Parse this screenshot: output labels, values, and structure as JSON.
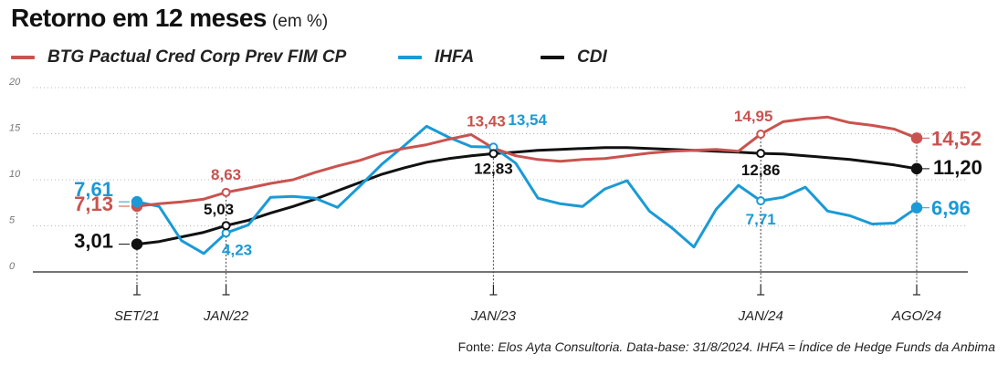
{
  "header": {
    "title": "Retorno em 12 meses",
    "unit": "(em %)"
  },
  "source": {
    "prefix": "Fonte:",
    "text": "Elos Ayta Consultoria. Data-base: 31/8/2024. IHFA = Índice de Hedge Funds da Anbima"
  },
  "chart_data": {
    "type": "line",
    "title": "Retorno em 12 meses",
    "ylabel": "",
    "xlabel": "",
    "ylim": [
      0,
      20
    ],
    "yticks": [
      "0",
      "5",
      "10",
      "15",
      "20"
    ],
    "grid": true,
    "legend_position": "top",
    "x_tick_labels": [
      {
        "index": 0,
        "label": "SET/21"
      },
      {
        "index": 4,
        "label": "JAN/22"
      },
      {
        "index": 16,
        "label": "JAN/23"
      },
      {
        "index": 28,
        "label": "JAN/24"
      },
      {
        "index": 35,
        "label": "AGO/24"
      }
    ],
    "series": [
      {
        "name": "BTG Pactual Cred Corp Prev FIM CP",
        "color": "#c9534f",
        "values": [
          7.13,
          7.4,
          7.6,
          7.9,
          8.63,
          9.1,
          9.6,
          10.0,
          10.8,
          11.5,
          12.1,
          12.9,
          13.4,
          13.8,
          14.4,
          14.9,
          13.43,
          12.6,
          12.2,
          12.0,
          12.2,
          12.3,
          12.6,
          12.9,
          13.1,
          13.2,
          13.3,
          13.1,
          14.95,
          16.3,
          16.6,
          16.8,
          16.2,
          15.9,
          15.5,
          14.52
        ],
        "labeled": [
          {
            "index": 0,
            "text": "7,13"
          },
          {
            "index": 4,
            "text": "8,63"
          },
          {
            "index": 16,
            "text": "13,43"
          },
          {
            "index": 28,
            "text": "14,95"
          },
          {
            "index": 35,
            "text": "14,52"
          }
        ]
      },
      {
        "name": "IHFA",
        "color": "#1a9ad6",
        "values": [
          7.61,
          7.1,
          3.4,
          2.0,
          4.23,
          5.1,
          8.1,
          8.2,
          8.0,
          7.0,
          9.3,
          11.7,
          13.7,
          15.8,
          14.6,
          13.6,
          13.54,
          11.8,
          8.0,
          7.4,
          7.1,
          9.0,
          9.9,
          6.6,
          4.8,
          2.7,
          6.8,
          9.4,
          7.71,
          8.1,
          9.2,
          6.6,
          6.1,
          5.2,
          5.3,
          6.96
        ],
        "labeled": [
          {
            "index": 0,
            "text": "7,61"
          },
          {
            "index": 4,
            "text": "4,23"
          },
          {
            "index": 16,
            "text": "13,54"
          },
          {
            "index": 28,
            "text": "7,71"
          },
          {
            "index": 35,
            "text": "6,96"
          }
        ]
      },
      {
        "name": "CDI",
        "color": "#111111",
        "values": [
          3.01,
          3.3,
          3.8,
          4.3,
          5.03,
          5.6,
          6.4,
          7.1,
          7.9,
          8.8,
          9.7,
          10.6,
          11.3,
          11.9,
          12.3,
          12.6,
          12.83,
          13.0,
          13.2,
          13.3,
          13.4,
          13.5,
          13.5,
          13.4,
          13.3,
          13.2,
          13.1,
          13.0,
          12.86,
          12.8,
          12.6,
          12.4,
          12.2,
          11.9,
          11.6,
          11.2
        ],
        "labeled": [
          {
            "index": 0,
            "text": "3,01"
          },
          {
            "index": 4,
            "text": "5,03"
          },
          {
            "index": 16,
            "text": "12,83"
          },
          {
            "index": 28,
            "text": "12,86"
          },
          {
            "index": 35,
            "text": "11,20"
          }
        ]
      }
    ]
  }
}
